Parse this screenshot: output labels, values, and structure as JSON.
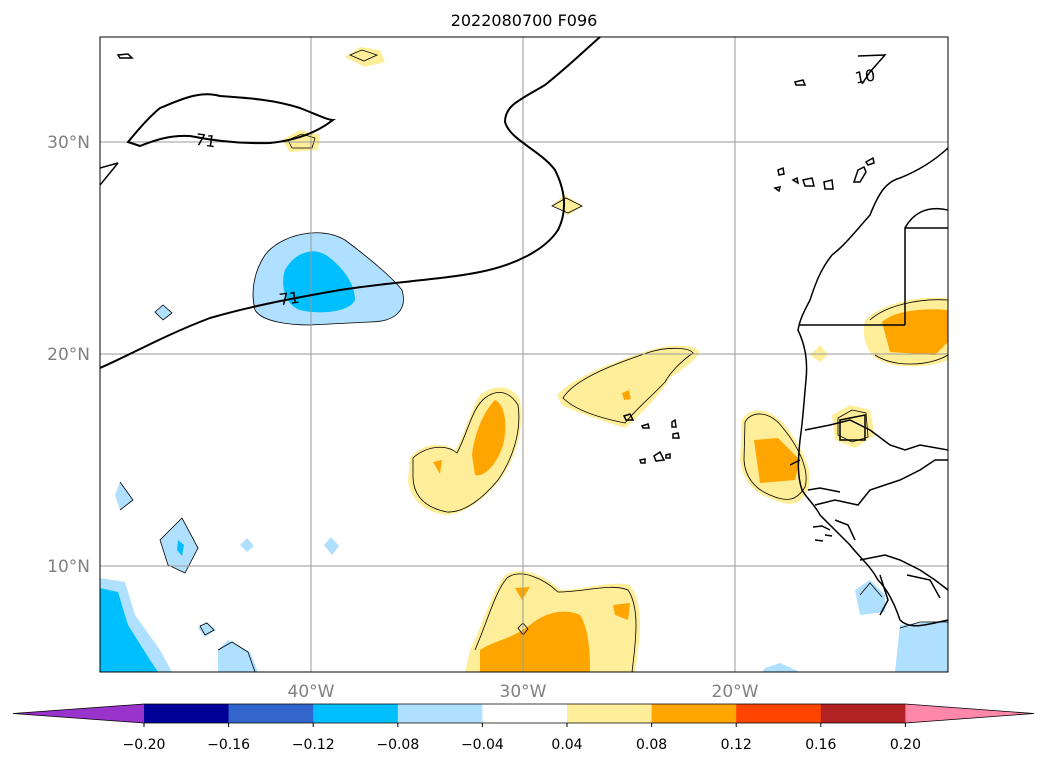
{
  "title": "2022080700 F096",
  "map": {
    "lat_ticks": [
      "30°N",
      "20°N",
      "10°N"
    ],
    "lon_ticks": [
      "40°W",
      "30°W",
      "20°W"
    ],
    "contour_labels": [
      "71",
      "71",
      "10"
    ]
  },
  "colorbar": {
    "colors": [
      "#9933cc",
      "#000099",
      "#3366cc",
      "#00bfff",
      "#b0e0ff",
      "#ffffff",
      "#ffee99",
      "#ffa500",
      "#ff4500",
      "#b22222",
      "#ff88aa"
    ],
    "tick_labels": [
      "-0.20",
      "-0.16",
      "-0.12",
      "-0.08",
      "-0.04",
      "0.04",
      "0.08",
      "0.12",
      "0.16",
      "0.20"
    ]
  },
  "colors": {
    "light_blue": "#b0e0ff",
    "blue": "#00bfff",
    "light_yellow": "#ffee99",
    "orange": "#ffa500"
  }
}
